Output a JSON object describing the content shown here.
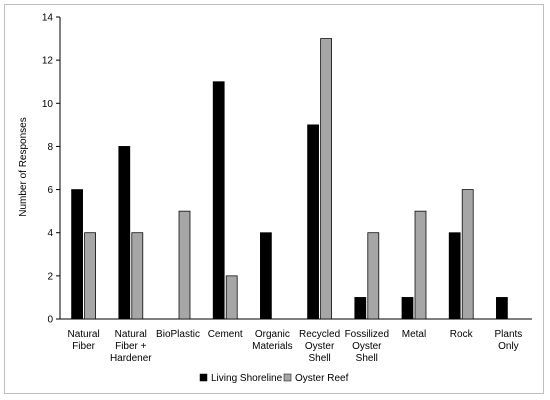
{
  "chart_data": {
    "type": "bar",
    "title": "",
    "xlabel": "",
    "ylabel": "Number of Responses",
    "ylim": [
      0,
      14
    ],
    "yticks": [
      0,
      2,
      4,
      6,
      8,
      10,
      12,
      14
    ],
    "grid": false,
    "legend_position": "bottom",
    "categories": [
      [
        "Natural",
        "Fiber"
      ],
      [
        "Natural",
        "Fiber +",
        "Hardener"
      ],
      [
        "BioPlastic"
      ],
      [
        "Cement"
      ],
      [
        "Organic",
        "Materials"
      ],
      [
        "Recycled",
        "Oyster",
        "Shell"
      ],
      [
        "Fossilized",
        "Oyster",
        "Shell"
      ],
      [
        "Metal"
      ],
      [
        "Rock"
      ],
      [
        "Plants",
        "Only"
      ]
    ],
    "series": [
      {
        "name": "Living Shoreline",
        "color": "#000000",
        "values": [
          6,
          8,
          0,
          11,
          4,
          9,
          1,
          1,
          4,
          1
        ]
      },
      {
        "name": "Oyster Reef",
        "color": "#a6a6a6",
        "values": [
          4,
          4,
          5,
          2,
          0,
          13,
          4,
          5,
          6,
          0
        ]
      }
    ]
  }
}
